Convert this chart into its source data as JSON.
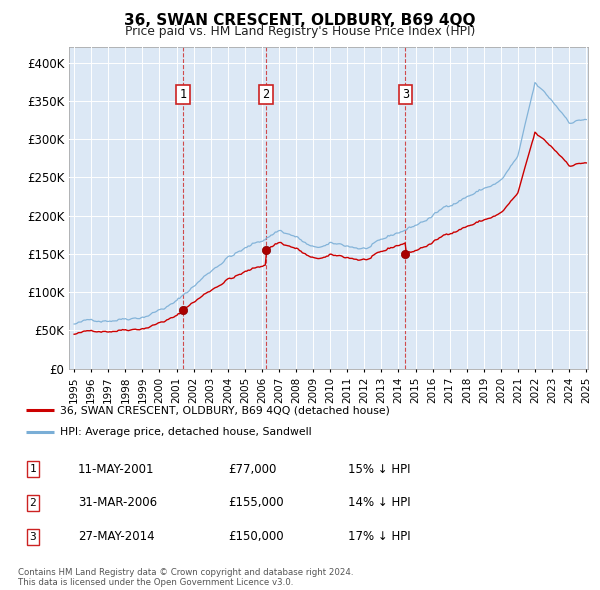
{
  "title": "36, SWAN CRESCENT, OLDBURY, B69 4QQ",
  "subtitle": "Price paid vs. HM Land Registry's House Price Index (HPI)",
  "legend_line1": "36, SWAN CRESCENT, OLDBURY, B69 4QQ (detached house)",
  "legend_line2": "HPI: Average price, detached house, Sandwell",
  "sale_color": "#cc0000",
  "hpi_color": "#7aaed6",
  "plot_bg": "#dce8f5",
  "annotations": [
    {
      "num": 1,
      "date": "11-MAY-2001",
      "price": 77000,
      "pct": "15%",
      "dir": "↓",
      "year": 2001.37
    },
    {
      "num": 2,
      "date": "31-MAR-2006",
      "price": 155000,
      "pct": "14%",
      "dir": "↓",
      "year": 2006.25
    },
    {
      "num": 3,
      "date": "27-MAY-2014",
      "price": 150000,
      "pct": "17%",
      "dir": "↓",
      "year": 2014.41
    }
  ],
  "footer_line1": "Contains HM Land Registry data © Crown copyright and database right 2024.",
  "footer_line2": "This data is licensed under the Open Government Licence v3.0.",
  "ylim": [
    0,
    420000
  ],
  "yticks": [
    0,
    50000,
    100000,
    150000,
    200000,
    250000,
    300000,
    350000,
    400000
  ],
  "ytick_labels": [
    "£0",
    "£50K",
    "£100K",
    "£150K",
    "£200K",
    "£250K",
    "£300K",
    "£350K",
    "£400K"
  ],
  "year_start": 1995,
  "year_end": 2025
}
